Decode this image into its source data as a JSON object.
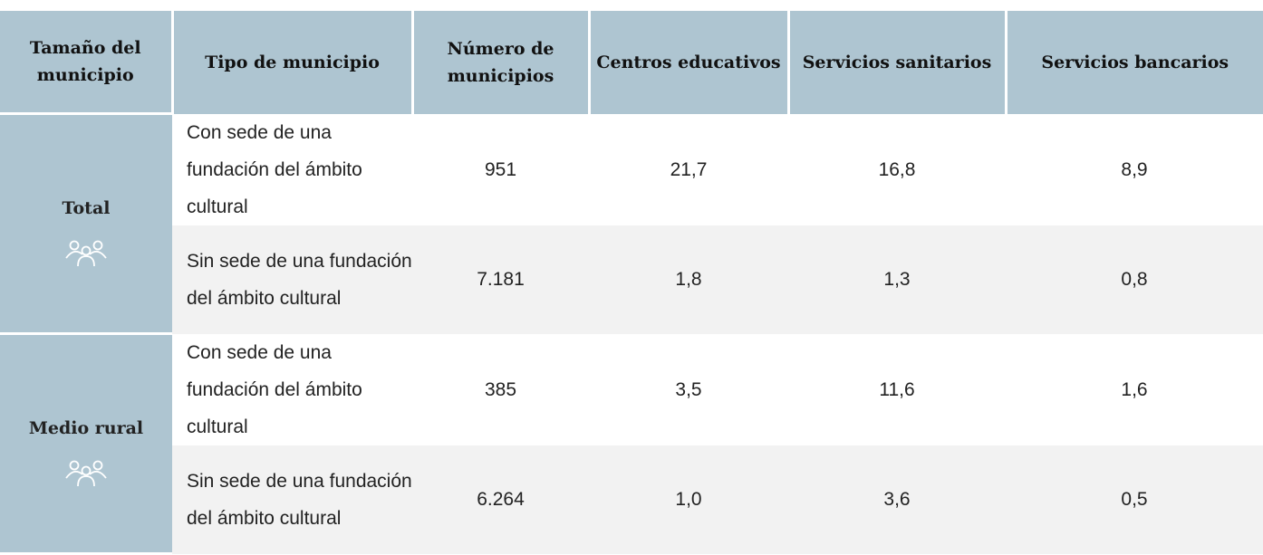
{
  "table": {
    "headers": [
      "Tamaño del municipio",
      "Tipo de municipio",
      "Número de municipios",
      "Centros educativos",
      "Servicios sanitarios",
      "Servicios bancarios"
    ],
    "groups": [
      {
        "label": "Total",
        "rows": [
          [
            "Con sede de una fundación del ámbito cultural",
            "951",
            "21,7",
            "16,8",
            "8,9"
          ],
          [
            "Sin sede de una fundación del ámbito cultural",
            "7.181",
            "1,8",
            "1,3",
            "0,8"
          ]
        ]
      },
      {
        "label": "Medio rural",
        "rows": [
          [
            "Con sede de una fundación del ámbito cultural",
            "385",
            "3,5",
            "11,6",
            "1,6"
          ],
          [
            "Sin sede de una fundación del ámbito cultural",
            "6.264",
            "1,0",
            "3,6",
            "0,5"
          ]
        ]
      }
    ]
  }
}
